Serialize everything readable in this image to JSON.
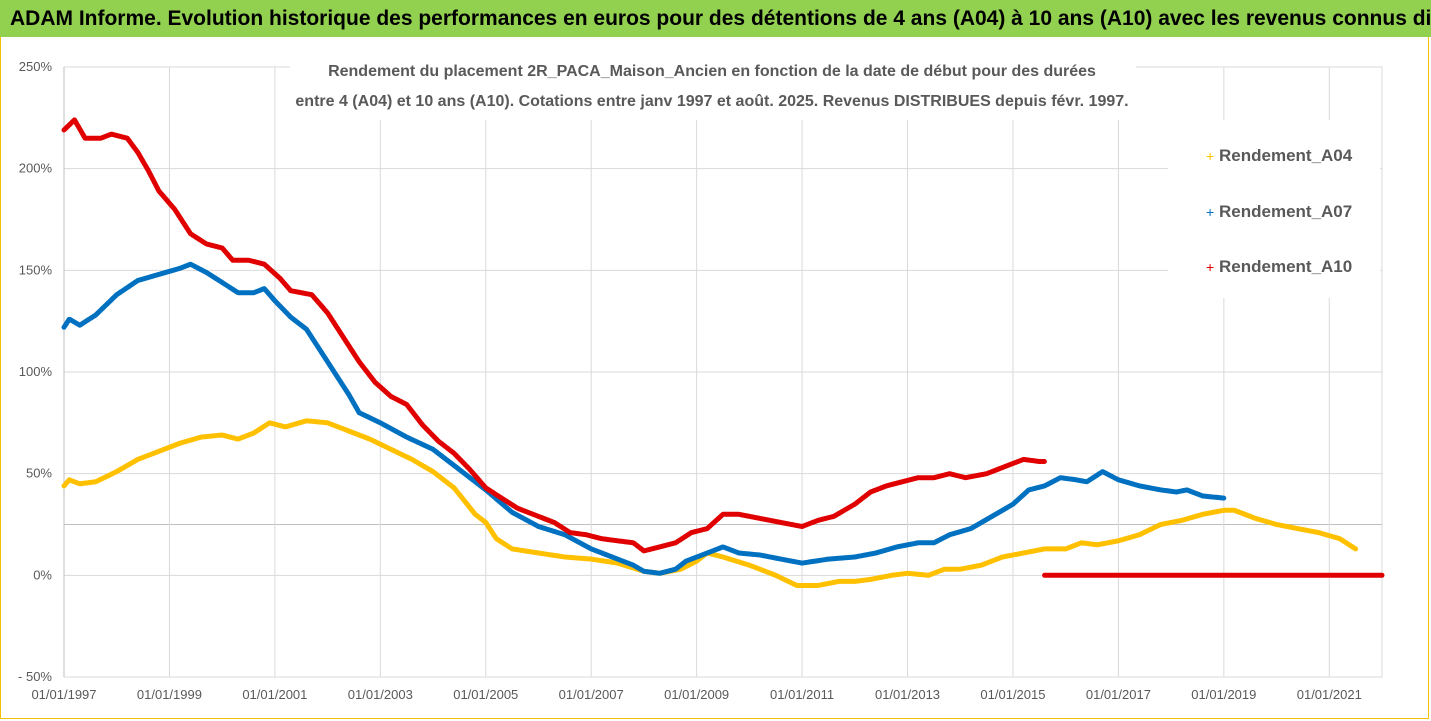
{
  "header": {
    "title": "ADAM Informe. Evolution historique des performances en euros pour des détentions de 4 ans (A04) à 10 ans (A10) avec les revenus connus distribués"
  },
  "chart_data": {
    "type": "line",
    "subtitle_lines": [
      "Rendement du placement 2R_PACA_Maison_Ancien en fonction de la date de début pour des durées",
      "entre 4 (A04) et 10 ans (A10). Cotations entre janv 1997 et août. 2025. Revenus DISTRIBUES depuis févr. 1997."
    ],
    "xlabel": "",
    "ylabel": "",
    "xlim": [
      1997.0,
      2022.0
    ],
    "ylim": [
      -50,
      250
    ],
    "y_ticks": [
      -50,
      0,
      50,
      100,
      150,
      200,
      250
    ],
    "y_tick_labels": [
      "- 50%",
      "0%",
      "50%",
      "100%",
      "150%",
      "200%",
      "250%"
    ],
    "x_ticks": [
      1997,
      1999,
      2001,
      2003,
      2005,
      2007,
      2009,
      2011,
      2013,
      2015,
      2017,
      2019,
      2021
    ],
    "x_tick_labels": [
      "01/01/1997",
      "01/01/1999",
      "01/01/2001",
      "01/01/2003",
      "01/01/2005",
      "01/01/2007",
      "01/01/2009",
      "01/01/2011",
      "01/01/2013",
      "01/01/2015",
      "01/01/2017",
      "01/01/2019",
      "01/01/2021"
    ],
    "grid": true,
    "extra_hline": 25,
    "legend_position": "right",
    "series": [
      {
        "name": "Rendement_A04",
        "color": "#ffc000",
        "points": [
          [
            1997.0,
            44
          ],
          [
            1997.1,
            47
          ],
          [
            1997.3,
            45
          ],
          [
            1997.6,
            46
          ],
          [
            1998.0,
            51
          ],
          [
            1998.4,
            57
          ],
          [
            1998.8,
            61
          ],
          [
            1999.2,
            65
          ],
          [
            1999.6,
            68
          ],
          [
            2000.0,
            69
          ],
          [
            2000.3,
            67
          ],
          [
            2000.6,
            70
          ],
          [
            2000.9,
            75
          ],
          [
            2001.2,
            73
          ],
          [
            2001.6,
            76
          ],
          [
            2002.0,
            75
          ],
          [
            2002.4,
            71
          ],
          [
            2002.8,
            67
          ],
          [
            2003.2,
            62
          ],
          [
            2003.6,
            57
          ],
          [
            2004.0,
            51
          ],
          [
            2004.4,
            43
          ],
          [
            2004.8,
            30
          ],
          [
            2005.0,
            26
          ],
          [
            2005.2,
            18
          ],
          [
            2005.5,
            13
          ],
          [
            2006.0,
            11
          ],
          [
            2006.5,
            9
          ],
          [
            2007.0,
            8
          ],
          [
            2007.5,
            6
          ],
          [
            2008.0,
            2
          ],
          [
            2008.3,
            1
          ],
          [
            2008.7,
            3
          ],
          [
            2009.0,
            7
          ],
          [
            2009.2,
            11
          ],
          [
            2009.5,
            9
          ],
          [
            2010.0,
            5
          ],
          [
            2010.5,
            0
          ],
          [
            2010.9,
            -5
          ],
          [
            2011.3,
            -5
          ],
          [
            2011.7,
            -3
          ],
          [
            2012.0,
            -3
          ],
          [
            2012.3,
            -2
          ],
          [
            2012.7,
            0
          ],
          [
            2013.0,
            1
          ],
          [
            2013.4,
            0
          ],
          [
            2013.7,
            3
          ],
          [
            2014.0,
            3
          ],
          [
            2014.4,
            5
          ],
          [
            2014.8,
            9
          ],
          [
            2015.2,
            11
          ],
          [
            2015.6,
            13
          ],
          [
            2016.0,
            13
          ],
          [
            2016.3,
            16
          ],
          [
            2016.6,
            15
          ],
          [
            2017.0,
            17
          ],
          [
            2017.4,
            20
          ],
          [
            2017.8,
            25
          ],
          [
            2018.2,
            27
          ],
          [
            2018.6,
            30
          ],
          [
            2019.0,
            32
          ],
          [
            2019.2,
            32
          ],
          [
            2019.6,
            28
          ],
          [
            2020.0,
            25
          ],
          [
            2020.4,
            23
          ],
          [
            2020.8,
            21
          ],
          [
            2021.2,
            18
          ],
          [
            2021.5,
            13
          ]
        ]
      },
      {
        "name": "Rendement_A07",
        "color": "#0070c0",
        "points": [
          [
            1997.0,
            122
          ],
          [
            1997.1,
            126
          ],
          [
            1997.3,
            123
          ],
          [
            1997.6,
            128
          ],
          [
            1998.0,
            138
          ],
          [
            1998.4,
            145
          ],
          [
            1998.8,
            148
          ],
          [
            1999.2,
            151
          ],
          [
            1999.4,
            153
          ],
          [
            1999.7,
            149
          ],
          [
            2000.0,
            144
          ],
          [
            2000.3,
            139
          ],
          [
            2000.6,
            139
          ],
          [
            2000.8,
            141
          ],
          [
            2001.0,
            135
          ],
          [
            2001.3,
            127
          ],
          [
            2001.6,
            121
          ],
          [
            2001.8,
            113
          ],
          [
            2002.1,
            101
          ],
          [
            2002.4,
            89
          ],
          [
            2002.6,
            80
          ],
          [
            2003.0,
            75
          ],
          [
            2003.5,
            68
          ],
          [
            2004.0,
            62
          ],
          [
            2004.5,
            52
          ],
          [
            2005.0,
            42
          ],
          [
            2005.5,
            31
          ],
          [
            2006.0,
            24
          ],
          [
            2006.5,
            20
          ],
          [
            2007.0,
            13
          ],
          [
            2007.5,
            8
          ],
          [
            2007.8,
            5
          ],
          [
            2008.0,
            2
          ],
          [
            2008.3,
            1
          ],
          [
            2008.6,
            3
          ],
          [
            2008.8,
            7
          ],
          [
            2009.2,
            11
          ],
          [
            2009.5,
            14
          ],
          [
            2009.8,
            11
          ],
          [
            2010.2,
            10
          ],
          [
            2010.6,
            8
          ],
          [
            2011.0,
            6
          ],
          [
            2011.5,
            8
          ],
          [
            2012.0,
            9
          ],
          [
            2012.4,
            11
          ],
          [
            2012.8,
            14
          ],
          [
            2013.2,
            16
          ],
          [
            2013.5,
            16
          ],
          [
            2013.8,
            20
          ],
          [
            2014.2,
            23
          ],
          [
            2014.6,
            29
          ],
          [
            2015.0,
            35
          ],
          [
            2015.3,
            42
          ],
          [
            2015.6,
            44
          ],
          [
            2015.9,
            48
          ],
          [
            2016.2,
            47
          ],
          [
            2016.4,
            46
          ],
          [
            2016.7,
            51
          ],
          [
            2017.0,
            47
          ],
          [
            2017.4,
            44
          ],
          [
            2017.8,
            42
          ],
          [
            2018.1,
            41
          ],
          [
            2018.3,
            42
          ],
          [
            2018.6,
            39
          ],
          [
            2019.0,
            38
          ]
        ]
      },
      {
        "name": "Rendement_A10",
        "color": "#e00000",
        "points": [
          [
            1997.0,
            219
          ],
          [
            1997.2,
            224
          ],
          [
            1997.4,
            215
          ],
          [
            1997.7,
            215
          ],
          [
            1997.9,
            217
          ],
          [
            1998.2,
            215
          ],
          [
            1998.4,
            208
          ],
          [
            1998.6,
            199
          ],
          [
            1998.8,
            189
          ],
          [
            1999.1,
            180
          ],
          [
            1999.4,
            168
          ],
          [
            1999.7,
            163
          ],
          [
            2000.0,
            161
          ],
          [
            2000.2,
            155
          ],
          [
            2000.5,
            155
          ],
          [
            2000.8,
            153
          ],
          [
            2001.1,
            146
          ],
          [
            2001.3,
            140
          ],
          [
            2001.7,
            138
          ],
          [
            2002.0,
            129
          ],
          [
            2002.3,
            117
          ],
          [
            2002.6,
            105
          ],
          [
            2002.9,
            95
          ],
          [
            2003.2,
            88
          ],
          [
            2003.5,
            84
          ],
          [
            2003.8,
            74
          ],
          [
            2004.1,
            66
          ],
          [
            2004.4,
            60
          ],
          [
            2004.7,
            52
          ],
          [
            2005.0,
            43
          ],
          [
            2005.3,
            38
          ],
          [
            2005.6,
            33
          ],
          [
            2006.0,
            29
          ],
          [
            2006.3,
            26
          ],
          [
            2006.6,
            21
          ],
          [
            2006.9,
            20
          ],
          [
            2007.2,
            18
          ],
          [
            2007.5,
            17
          ],
          [
            2007.8,
            16
          ],
          [
            2008.0,
            12
          ],
          [
            2008.3,
            14
          ],
          [
            2008.6,
            16
          ],
          [
            2008.9,
            21
          ],
          [
            2009.2,
            23
          ],
          [
            2009.5,
            30
          ],
          [
            2009.8,
            30
          ],
          [
            2010.2,
            28
          ],
          [
            2010.6,
            26
          ],
          [
            2011.0,
            24
          ],
          [
            2011.3,
            27
          ],
          [
            2011.6,
            29
          ],
          [
            2012.0,
            35
          ],
          [
            2012.3,
            41
          ],
          [
            2012.6,
            44
          ],
          [
            2012.9,
            46
          ],
          [
            2013.2,
            48
          ],
          [
            2013.5,
            48
          ],
          [
            2013.8,
            50
          ],
          [
            2014.1,
            48
          ],
          [
            2014.5,
            50
          ],
          [
            2014.9,
            54
          ],
          [
            2015.2,
            57
          ],
          [
            2015.5,
            56
          ],
          [
            2015.6,
            56
          ]
        ]
      },
      {
        "name": "",
        "color": "#e00000",
        "points": [
          [
            2015.6,
            0
          ],
          [
            2022.0,
            0
          ]
        ]
      }
    ],
    "legend": [
      {
        "label": "Rendement_A04",
        "color": "#ffc000"
      },
      {
        "label": "Rendement_A07",
        "color": "#0070c0"
      },
      {
        "label": "Rendement_A10",
        "color": "#e00000"
      }
    ]
  }
}
